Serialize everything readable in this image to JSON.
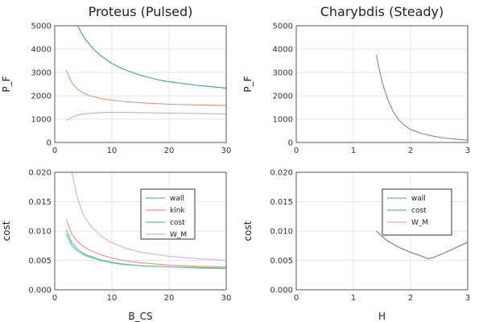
{
  "chart_data": [
    {
      "type": "line",
      "title": "Proteus (Pulsed)",
      "xlabel": "",
      "ylabel": "P_F",
      "xlim": [
        0,
        30
      ],
      "ylim": [
        0,
        5000
      ],
      "xticks": [
        "0",
        "10",
        "20",
        "30"
      ],
      "yticks": [
        "0",
        "1000",
        "2000",
        "3000",
        "4000",
        "5000"
      ],
      "grid": true,
      "series": [
        {
          "color": "#3aa58f",
          "x": [
            4,
            5,
            6,
            7,
            8,
            10,
            12,
            15,
            18,
            20,
            25,
            30
          ],
          "y": [
            5000,
            4550,
            4220,
            3950,
            3720,
            3380,
            3140,
            2880,
            2690,
            2600,
            2450,
            2330
          ]
        },
        {
          "color": "#e8947a",
          "x": [
            2,
            3,
            4,
            5,
            6,
            8,
            10,
            12,
            15,
            20,
            25,
            30
          ],
          "y": [
            3100,
            2550,
            2280,
            2120,
            2010,
            1890,
            1810,
            1760,
            1700,
            1640,
            1610,
            1590
          ]
        },
        {
          "color": "#c9a6e0",
          "x": [
            2,
            3,
            4,
            5,
            6,
            8,
            10,
            12,
            15,
            20,
            25,
            30
          ],
          "y": [
            940,
            1080,
            1170,
            1220,
            1250,
            1280,
            1290,
            1290,
            1280,
            1260,
            1240,
            1220
          ]
        }
      ]
    },
    {
      "type": "line",
      "title": "Charybdis (Steady)",
      "xlabel": "",
      "ylabel": "P_F",
      "xlim": [
        0,
        3
      ],
      "ylim": [
        0,
        5000
      ],
      "xticks": [
        "0",
        "1",
        "2",
        "3"
      ],
      "yticks": [
        "0",
        "1000",
        "2000",
        "3000",
        "4000",
        "5000"
      ],
      "grid": true,
      "series": [
        {
          "color": "#7a86b0",
          "x": [
            1.4,
            1.5,
            1.6,
            1.7,
            1.8,
            1.9,
            2.0,
            2.2,
            2.4,
            2.6,
            2.8,
            3.0
          ],
          "y": [
            3750,
            2600,
            1850,
            1300,
            950,
            720,
            560,
            380,
            270,
            190,
            140,
            100
          ]
        }
      ]
    },
    {
      "type": "line",
      "title": "",
      "xlabel": "B_CS",
      "ylabel": "cost",
      "xlim": [
        0,
        30
      ],
      "ylim": [
        0,
        0.02
      ],
      "xticks": [
        "0",
        "10",
        "20",
        "30"
      ],
      "yticks": [
        "0.000",
        "0.005",
        "0.010",
        "0.015",
        "0.020"
      ],
      "grid": true,
      "legend": {
        "position": "right",
        "entries": [
          "wall",
          "kink",
          "cost",
          "W_M"
        ]
      },
      "series": [
        {
          "name": "wall",
          "color": "#5bb8d8",
          "x": [
            2,
            3,
            4,
            5,
            6,
            8,
            10,
            12,
            15,
            20,
            25,
            30
          ],
          "y": [
            0.0095,
            0.0075,
            0.0066,
            0.006,
            0.0056,
            0.005,
            0.0046,
            0.0043,
            0.0041,
            0.0039,
            0.0037,
            0.0036
          ]
        },
        {
          "name": "kink",
          "color": "#e8947a",
          "x": [
            2,
            3,
            4,
            5,
            6,
            8,
            10,
            12,
            15,
            20,
            25,
            30
          ],
          "y": [
            0.012,
            0.0094,
            0.0082,
            0.0074,
            0.0068,
            0.006,
            0.0054,
            0.005,
            0.0046,
            0.0042,
            0.004,
            0.0039
          ]
        },
        {
          "name": "cost",
          "color": "#6bbf8a",
          "x": [
            2,
            3,
            4,
            5,
            6,
            8,
            10,
            12,
            15,
            20,
            25,
            30
          ],
          "y": [
            0.0102,
            0.008,
            0.0069,
            0.0062,
            0.0058,
            0.0051,
            0.0047,
            0.0044,
            0.0041,
            0.0039,
            0.0038,
            0.0037
          ]
        },
        {
          "name": "W_M",
          "color": "#dba8e8",
          "x": [
            3,
            4,
            5,
            6,
            8,
            10,
            12,
            15,
            20,
            25,
            30
          ],
          "y": [
            0.02,
            0.0155,
            0.0128,
            0.0112,
            0.0092,
            0.008,
            0.0072,
            0.0064,
            0.0057,
            0.0053,
            0.005
          ]
        }
      ]
    },
    {
      "type": "line",
      "title": "",
      "xlabel": "H",
      "ylabel": "cost",
      "xlim": [
        0,
        3
      ],
      "ylim": [
        0,
        0.02
      ],
      "xticks": [
        "0",
        "1",
        "2",
        "3"
      ],
      "yticks": [
        "0.000",
        "0.005",
        "0.010",
        "0.015",
        "0.020"
      ],
      "grid": true,
      "legend": {
        "position": "right",
        "entries": [
          "wall",
          "cost",
          "W_M"
        ]
      },
      "series": [
        {
          "name": "wall",
          "color": "#5bb8d8",
          "x": [
            1.4,
            1.5,
            1.6,
            1.8,
            2.0,
            2.2,
            2.3,
            2.4,
            2.6,
            2.8,
            3.0
          ],
          "y": [
            0.01,
            0.0091,
            0.0083,
            0.0072,
            0.0064,
            0.0057,
            0.0053,
            0.0055,
            0.0063,
            0.0072,
            0.0081
          ]
        },
        {
          "name": "cost",
          "color": "#6bbf8a",
          "x": [
            1.4,
            1.5,
            1.6,
            1.8,
            2.0,
            2.2,
            2.3,
            2.4,
            2.6,
            2.8,
            3.0
          ],
          "y": [
            0.01,
            0.0091,
            0.0083,
            0.0072,
            0.0064,
            0.0057,
            0.0053,
            0.0055,
            0.0063,
            0.0072,
            0.0081
          ]
        },
        {
          "name": "W_M",
          "color": "#dba8e8",
          "x": [
            1.4,
            1.5,
            1.6,
            1.8,
            2.0,
            2.2,
            2.3,
            2.4,
            2.6,
            2.8,
            3.0
          ],
          "y": [
            0.01,
            0.0091,
            0.0083,
            0.0072,
            0.0064,
            0.0057,
            0.0053,
            0.0055,
            0.0063,
            0.0072,
            0.0081
          ]
        },
        {
          "color": "#8a8a9a",
          "x": [
            1.4,
            1.5,
            1.6,
            1.8,
            2.0,
            2.2,
            2.3,
            2.4,
            2.6,
            2.8,
            3.0
          ],
          "y": [
            0.01,
            0.0091,
            0.0083,
            0.0072,
            0.0064,
            0.0057,
            0.0053,
            0.0055,
            0.0063,
            0.0072,
            0.0081
          ]
        }
      ]
    }
  ]
}
